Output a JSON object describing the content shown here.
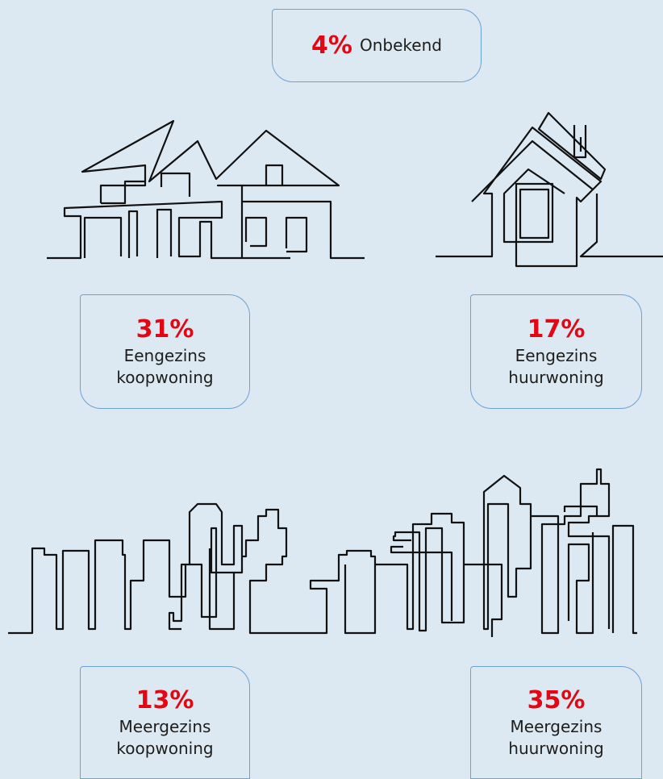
{
  "boxes": [
    {
      "percent": "4%",
      "lines": [
        "Onbekend"
      ]
    },
    {
      "percent": "31%",
      "lines": [
        "Eengezins",
        "koopwoning"
      ]
    },
    {
      "percent": "17%",
      "lines": [
        "Eengezins",
        "huurwoning"
      ]
    },
    {
      "percent": "13%",
      "lines": [
        "Meergezins",
        "koopwoning"
      ]
    },
    {
      "percent": "35%",
      "lines": [
        "Meergezins",
        "huurwoning"
      ]
    }
  ]
}
